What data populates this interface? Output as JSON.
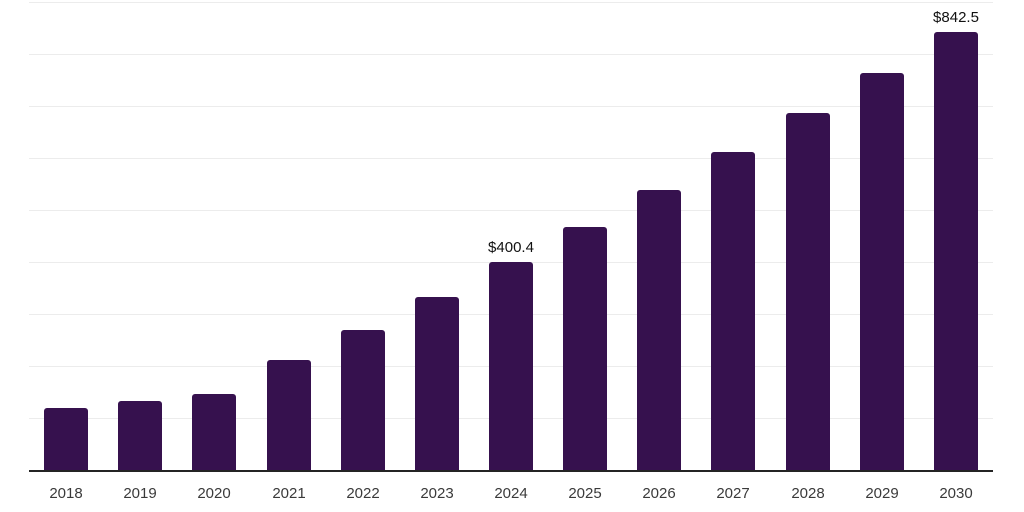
{
  "chart_data": {
    "type": "bar",
    "title": "",
    "xlabel": "",
    "ylabel": "",
    "categories": [
      "2018",
      "2019",
      "2020",
      "2021",
      "2022",
      "2023",
      "2024",
      "2025",
      "2026",
      "2027",
      "2028",
      "2029",
      "2030"
    ],
    "values": [
      119.8,
      132.5,
      145.4,
      211.2,
      268.8,
      332.7,
      400.4,
      467.2,
      538.8,
      611.5,
      687.3,
      763.2,
      842.5
    ],
    "annotations": [
      {
        "category": "2024",
        "text": "$400.4"
      },
      {
        "category": "2030",
        "text": "$842.5"
      }
    ],
    "ylim": [
      0,
      900
    ],
    "gridline_step": 100,
    "grid": "horizontal",
    "legend_position": "none",
    "colors": {
      "bar": "#36114E",
      "axis_line": "#242424",
      "gridline": "#ECECEC",
      "value_label": "#111111",
      "tick_label": "#3A3A3A",
      "background": "#FFFFFF"
    }
  }
}
